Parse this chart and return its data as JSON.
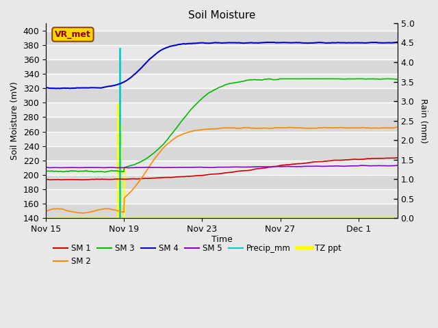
{
  "title": "Soil Moisture",
  "xlabel": "Time",
  "ylabel_left": "Soil Moisture (mV)",
  "ylabel_right": "Rain (mm)",
  "ylim_left": [
    140,
    410
  ],
  "ylim_right": [
    0.0,
    5.0
  ],
  "yticks_left": [
    140,
    160,
    180,
    200,
    220,
    240,
    260,
    280,
    300,
    320,
    340,
    360,
    380,
    400
  ],
  "yticks_right": [
    0.0,
    0.5,
    1.0,
    1.5,
    2.0,
    2.5,
    3.0,
    3.5,
    4.0,
    4.5,
    5.0
  ],
  "bg_color": "#e8e8e8",
  "annotation_text": "VR_met",
  "annotation_color": "#8B0000",
  "annotation_bg": "#FFD700",
  "line_colors": {
    "SM1": "#cc0000",
    "SM2": "#ff8800",
    "SM3": "#00bb00",
    "SM4": "#0000cc",
    "SM5": "#8800cc",
    "Precip_mm": "#00cccc",
    "TZ_ppt": "#ffff00"
  },
  "xtick_labels": [
    "Nov 15",
    "Nov 19",
    "Nov 23",
    "Nov 27",
    "Dec 1"
  ],
  "xtick_positions": [
    0,
    4,
    8,
    12,
    16
  ],
  "xlim": [
    0,
    18
  ],
  "grid_color": "#ffffff",
  "grid_lw": 1.0,
  "right_axis_tick_style": "dotted"
}
